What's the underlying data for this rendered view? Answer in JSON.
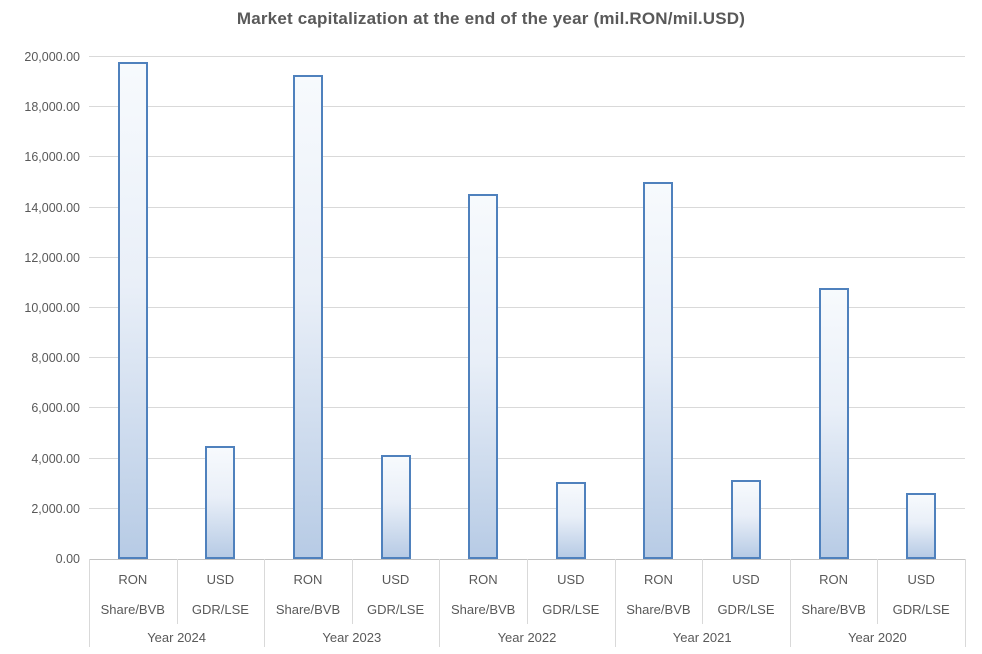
{
  "chart_data": {
    "type": "bar",
    "title": "Market capitalization at the end of the year (mil.RON/mil.USD)",
    "xlabel": "",
    "ylabel": "",
    "ylim": [
      0,
      20000
    ],
    "ytick_step": 2000,
    "ytick_labels": [
      "0.00",
      "2,000.00",
      "4,000.00",
      "6,000.00",
      "8,000.00",
      "10,000.00",
      "12,000.00",
      "14,000.00",
      "16,000.00",
      "18,000.00",
      "20,000.00"
    ],
    "grid": true,
    "legend": "none",
    "groups": [
      {
        "label": "Year 2024",
        "bars": [
          {
            "sub_label": [
              "RON",
              "Share/BVB"
            ],
            "value": 19800
          },
          {
            "sub_label": [
              "USD",
              "GDR/LSE"
            ],
            "value": 4500
          }
        ]
      },
      {
        "label": "Year 2023",
        "bars": [
          {
            "sub_label": [
              "RON",
              "Share/BVB"
            ],
            "value": 19280
          },
          {
            "sub_label": [
              "USD",
              "GDR/LSE"
            ],
            "value": 4150
          }
        ]
      },
      {
        "label": "Year 2022",
        "bars": [
          {
            "sub_label": [
              "RON",
              "Share/BVB"
            ],
            "value": 14560
          },
          {
            "sub_label": [
              "USD",
              "GDR/LSE"
            ],
            "value": 3080
          }
        ]
      },
      {
        "label": "Year 2021",
        "bars": [
          {
            "sub_label": [
              "RON",
              "Share/BVB"
            ],
            "value": 15030
          },
          {
            "sub_label": [
              "USD",
              "GDR/LSE"
            ],
            "value": 3160
          }
        ]
      },
      {
        "label": "Year 2020",
        "bars": [
          {
            "sub_label": [
              "RON",
              "Share/BVB"
            ],
            "value": 10800
          },
          {
            "sub_label": [
              "USD",
              "GDR/LSE"
            ],
            "value": 2640
          }
        ]
      }
    ],
    "colors": {
      "bar_border": "#4f81bd",
      "bar_fill_top": "#f7fafd",
      "bar_fill_mid": "#e9eff8",
      "bar_fill_bottom": "#b7cbe5",
      "gridline": "#d9d9d9",
      "axis_line": "#c2c2c2",
      "cell_border": "#d9d9d9",
      "text": "#595959"
    }
  }
}
